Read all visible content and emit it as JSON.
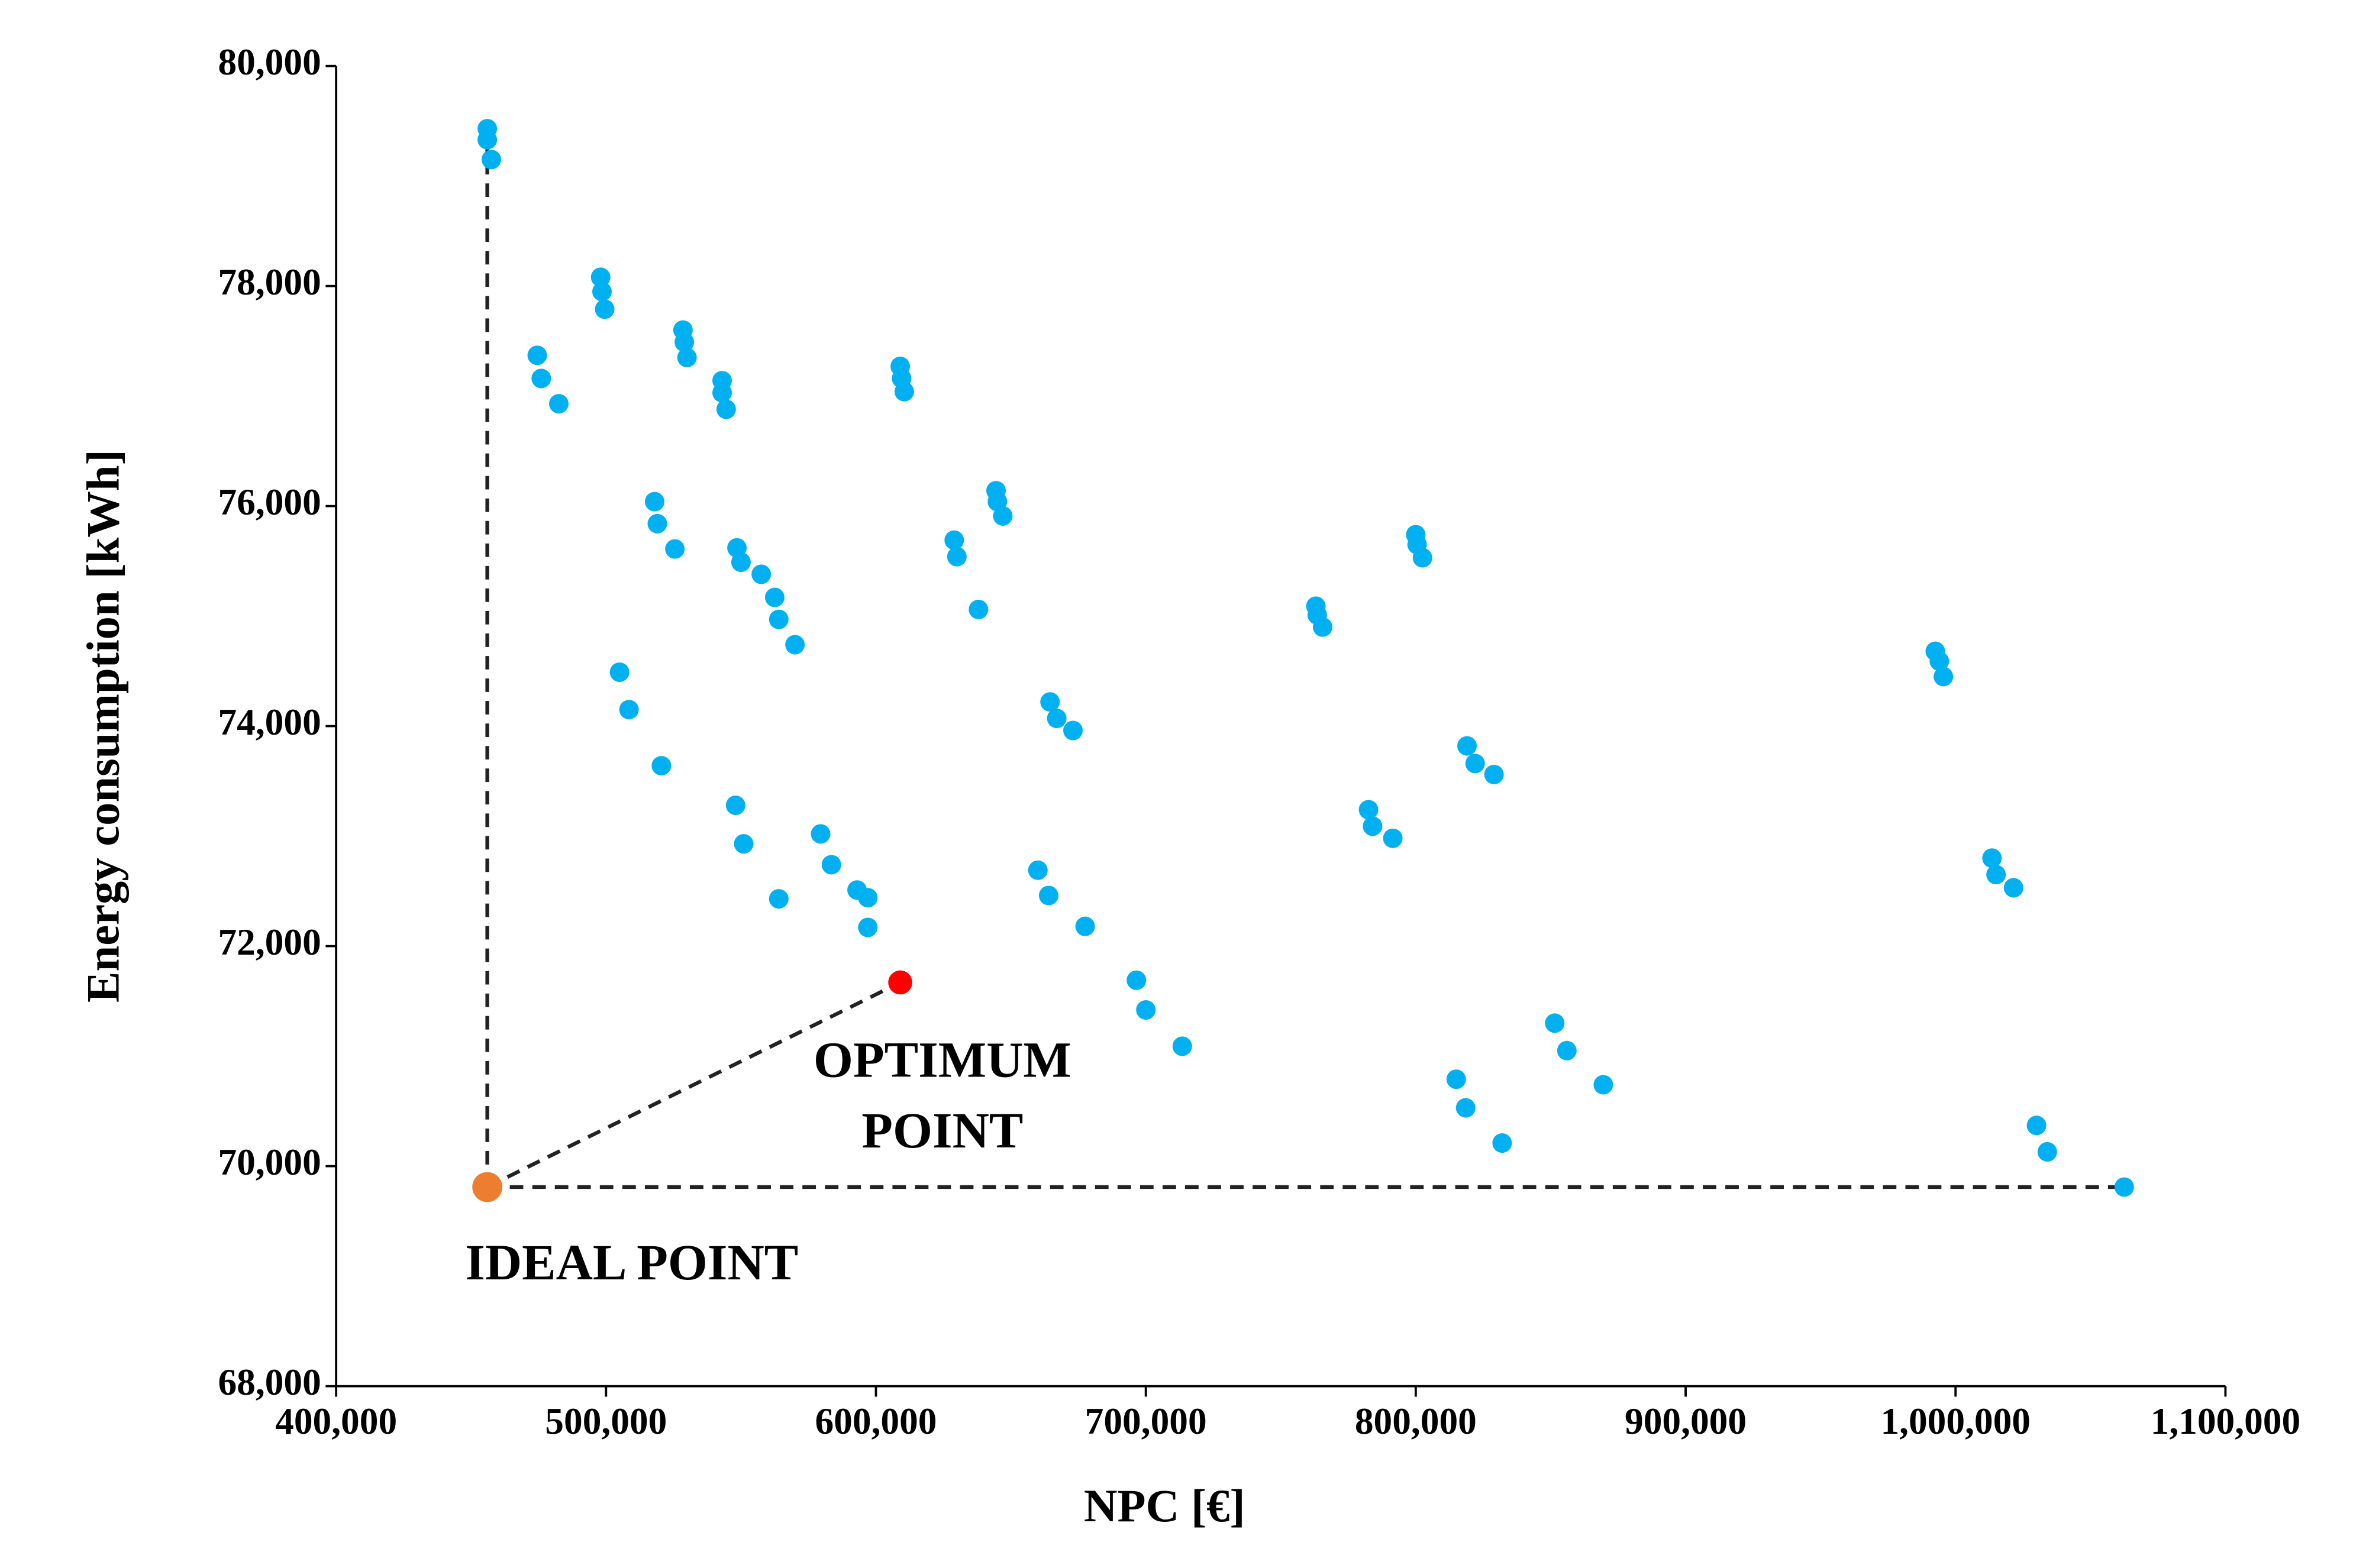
{
  "chart_data": {
    "type": "scatter",
    "x_label": "NPC [€]",
    "y_label": "Energy consumption [kWh]",
    "xlim": [
      400000,
      1100000
    ],
    "ylim": [
      68000,
      80000
    ],
    "xticks": [
      {
        "value": 400000,
        "label": "400,000"
      },
      {
        "value": 500000,
        "label": "500,000"
      },
      {
        "value": 600000,
        "label": "600,000"
      },
      {
        "value": 700000,
        "label": "700,000"
      },
      {
        "value": 800000,
        "label": "800,000"
      },
      {
        "value": 900000,
        "label": "900,000"
      },
      {
        "value": 1000000,
        "label": "1,000,000"
      },
      {
        "value": 1100000,
        "label": "1,100,000"
      }
    ],
    "yticks": [
      {
        "value": 68000,
        "label": "68,000"
      },
      {
        "value": 70000,
        "label": "70,000"
      },
      {
        "value": 72000,
        "label": "72,000"
      },
      {
        "value": 74000,
        "label": "74,000"
      },
      {
        "value": 76000,
        "label": "76,000"
      },
      {
        "value": 78000,
        "label": "78,000"
      },
      {
        "value": 80000,
        "label": "80,000"
      }
    ],
    "series": [
      {
        "color": "#00b0f0",
        "x": [
          456000,
          456000,
          457500,
          498000,
          498500,
          499500,
          474500,
          476000,
          482500,
          528500,
          529000,
          530000,
          543000,
          543000,
          544500,
          609000,
          609500,
          610500,
          644500,
          645000,
          647000,
          518000,
          519000,
          525500,
          548500,
          550000,
          557500,
          562500,
          564000,
          570000,
          629000,
          630000,
          638000,
          505000,
          508500,
          520500,
          548000,
          551000,
          564000,
          579500,
          583500,
          593000,
          597000,
          597000,
          664500,
          667000,
          673000,
          660000,
          664000,
          677500,
          696500,
          700000,
          713500,
          763000,
          763500,
          765500,
          800000,
          800500,
          802500,
          782500,
          784000,
          791500,
          819000,
          822000,
          829000,
          851500,
          856000,
          869500,
          815000,
          818500,
          832000,
          992500,
          994000,
          995500,
          1013500,
          1015000,
          1021500,
          1030000,
          1034000,
          1062500
        ],
        "values": [
          79430,
          79330,
          79150,
          78080,
          77950,
          77790,
          77370,
          77160,
          76930,
          77600,
          77490,
          77350,
          77140,
          77030,
          76880,
          77270,
          77160,
          77040,
          76140,
          76040,
          75910,
          76040,
          75840,
          75610,
          75620,
          75490,
          75380,
          75170,
          74970,
          74740,
          75690,
          75540,
          75060,
          74490,
          74150,
          73640,
          73280,
          72930,
          72430,
          73020,
          72740,
          72510,
          72440,
          72170,
          74220,
          74070,
          73960,
          72690,
          72460,
          72180,
          71690,
          71420,
          71090,
          75090,
          75010,
          74900,
          75740,
          75650,
          75530,
          73240,
          73090,
          72980,
          73820,
          73660,
          73560,
          71300,
          71050,
          70740,
          70790,
          70530,
          70210,
          74680,
          74590,
          74450,
          72800,
          72650,
          72530,
          70370,
          70130,
          69810
        ]
      },
      {
        "color": "#ed7d31",
        "x": [
          456000
        ],
        "values": [
          69810
        ]
      },
      {
        "color": "#ff0000",
        "x": [
          609000
        ],
        "values": [
          71670
        ]
      }
    ],
    "annotations": [
      {
        "lines": [
          "OPTIMUM",
          "POINT"
        ]
      },
      {
        "lines": [
          "IDEAL POINT"
        ]
      }
    ]
  }
}
